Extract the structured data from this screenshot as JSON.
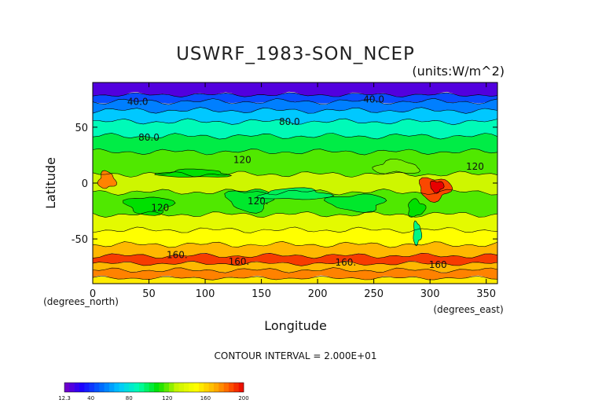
{
  "chart_data": {
    "type": "heatmap",
    "title": "USWRF_1983-SON_NCEP",
    "units": "(units:W/m^2)",
    "xlabel": "Longitude",
    "ylabel": "Latitude",
    "x_unit_label": "(degrees_east)",
    "y_unit_label": "(degrees_north)",
    "xlim": [
      0,
      360
    ],
    "ylim": [
      -90,
      90
    ],
    "x_ticks": [
      0,
      50,
      100,
      150,
      200,
      250,
      300,
      350
    ],
    "x_tick_labels": [
      "0",
      "50",
      "100",
      "150",
      "200",
      "250",
      "300",
      "350"
    ],
    "y_ticks": [
      50,
      0,
      -50
    ],
    "y_tick_labels": [
      "50",
      "0",
      "-50"
    ],
    "contour_interval_text": "CONTOUR INTERVAL = 2.000E+01",
    "contour_labels": [
      {
        "text": "40.0",
        "lon": 40,
        "lat": 70
      },
      {
        "text": "40.0",
        "lon": 250,
        "lat": 72
      },
      {
        "text": "80.0",
        "lon": 175,
        "lat": 52
      },
      {
        "text": "80.0",
        "lon": 50,
        "lat": 38
      },
      {
        "text": "120",
        "lon": 133,
        "lat": 18
      },
      {
        "text": "120",
        "lon": 340,
        "lat": 12
      },
      {
        "text": "120",
        "lon": 60,
        "lat": -25
      },
      {
        "text": "120.",
        "lon": 147,
        "lat": -19
      },
      {
        "text": "160.",
        "lon": 75,
        "lat": -67
      },
      {
        "text": "160.",
        "lon": 130,
        "lat": -73
      },
      {
        "text": "160.",
        "lon": 225,
        "lat": -74
      },
      {
        "text": "160",
        "lon": 307,
        "lat": -76
      }
    ],
    "zonal_bands": [
      {
        "lat_top": 90,
        "lat_bottom": 79,
        "value": 20
      },
      {
        "lat_top": 79,
        "lat_bottom": 73,
        "value": 45
      },
      {
        "lat_top": 73,
        "lat_bottom": 65,
        "value": 55
      },
      {
        "lat_top": 65,
        "lat_bottom": 55,
        "value": 70
      },
      {
        "lat_top": 55,
        "lat_bottom": 42,
        "value": 88
      },
      {
        "lat_top": 42,
        "lat_bottom": 28,
        "value": 102
      },
      {
        "lat_top": 28,
        "lat_bottom": 8,
        "value": 118
      },
      {
        "lat_top": 8,
        "lat_bottom": -8,
        "value": 132
      },
      {
        "lat_top": -8,
        "lat_bottom": -28,
        "value": 118
      },
      {
        "lat_top": -28,
        "lat_bottom": -42,
        "value": 140
      },
      {
        "lat_top": -42,
        "lat_bottom": -55,
        "value": 150
      },
      {
        "lat_top": -55,
        "lat_bottom": -65,
        "value": 168
      },
      {
        "lat_top": -65,
        "lat_bottom": -72,
        "value": 190
      },
      {
        "lat_top": -72,
        "lat_bottom": -78,
        "value": 168
      },
      {
        "lat_top": -78,
        "lat_bottom": -85,
        "value": 178
      },
      {
        "lat_top": -85,
        "lat_bottom": -90,
        "value": 155
      }
    ],
    "regional_features": [
      {
        "lon": [
          5,
          20
        ],
        "lat": [
          10,
          -5
        ],
        "value": 178
      },
      {
        "lon": [
          290,
          318
        ],
        "lat": [
          5,
          -15
        ],
        "value": 188
      },
      {
        "lon": [
          300,
          312
        ],
        "lat": [
          2,
          -8
        ],
        "value": 205
      },
      {
        "lon": [
          280,
          295
        ],
        "lat": [
          -15,
          -30
        ],
        "value": 110
      },
      {
        "lon": [
          285,
          292
        ],
        "lat": [
          -35,
          -55
        ],
        "value": 95
      },
      {
        "lon": [
          210,
          260
        ],
        "lat": [
          -10,
          -25
        ],
        "value": 105
      },
      {
        "lon": [
          120,
          160
        ],
        "lat": [
          -5,
          -25
        ],
        "value": 105
      },
      {
        "lon": [
          150,
          210
        ],
        "lat": [
          -5,
          -15
        ],
        "value": 100
      },
      {
        "lon": [
          30,
          70
        ],
        "lat": [
          -12,
          -28
        ],
        "value": 110
      },
      {
        "lon": [
          60,
          120
        ],
        "lat": [
          5,
          12
        ],
        "value": 110
      },
      {
        "lon": [
          250,
          290
        ],
        "lat": [
          20,
          8
        ],
        "value": 122
      }
    ],
    "colorbar": {
      "min": 12.3,
      "max": 200,
      "labels": [
        "12.3",
        "40",
        "80",
        "120",
        "160",
        "200"
      ],
      "label_values": [
        12.3,
        40,
        80,
        120,
        160,
        200
      ],
      "stops": [
        {
          "v": 12.3,
          "c": "#7a00c4"
        },
        {
          "v": 30,
          "c": "#1e00ff"
        },
        {
          "v": 50,
          "c": "#0066ff"
        },
        {
          "v": 70,
          "c": "#00c8ff"
        },
        {
          "v": 90,
          "c": "#00ffb0"
        },
        {
          "v": 110,
          "c": "#00e000"
        },
        {
          "v": 130,
          "c": "#c8f500"
        },
        {
          "v": 150,
          "c": "#ffff00"
        },
        {
          "v": 170,
          "c": "#ffb000"
        },
        {
          "v": 185,
          "c": "#ff5a00"
        },
        {
          "v": 200,
          "c": "#e80000"
        }
      ]
    },
    "grid": false,
    "legend": "bottom-left"
  }
}
